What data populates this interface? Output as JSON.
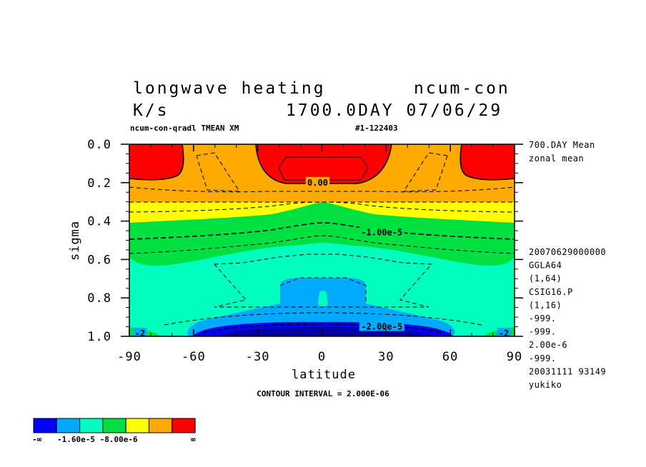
{
  "header": {
    "title": "longwave heating",
    "model": "ncum-con",
    "units": "K/s",
    "time": "1700.0DAY 07/06/29",
    "run": "ncum-con-qradl TMEAN XM",
    "id": "#1-122403"
  },
  "side_info": {
    "top": [
      "700.DAY Mean",
      "zonal mean"
    ],
    "bottom": [
      "20070629000000",
      "GGLA64",
      "(1,64)",
      "CSIG16.P",
      "(1,16)",
      "-999.",
      "-999.",
      "2.00e-6",
      "-999.",
      "20031111  93149",
      "yukiko"
    ]
  },
  "footer": {
    "contour_interval": "CONTOUR INTERVAL = 2.000E-06"
  },
  "colorbar": {
    "colors": [
      "#0000ff",
      "#00aaff",
      "#00ffbf",
      "#00e040",
      "#ffff00",
      "#ffaa00",
      "#ff0000"
    ],
    "labels": [
      "-∞",
      "-1.60e-5 -8.00e-6",
      "∞"
    ]
  },
  "chart_data": {
    "type": "heatmap",
    "subtype": "filled contour (latitude-sigma cross section)",
    "xlabel": "latitude",
    "ylabel": "sigma",
    "xlim": [
      -90,
      90
    ],
    "ylim": [
      1.0,
      0.0
    ],
    "xticks": [
      -90,
      -60,
      -30,
      0,
      30,
      60,
      90
    ],
    "xtick_labels": [
      "-90",
      "-60",
      "-30",
      "0",
      "30",
      "60",
      "90"
    ],
    "yticks": [
      0.0,
      0.2,
      0.4,
      0.6,
      0.8,
      1.0
    ],
    "ytick_labels": [
      "0.0",
      "0.2",
      "0.4",
      "0.6",
      "0.8",
      "1.0"
    ],
    "contour_labels": [
      {
        "text": "0.00",
        "lat": -2,
        "sigma": 0.2
      },
      {
        "text": "-1.00e-5",
        "lat": 28,
        "sigma": 0.46
      },
      {
        "text": "-2.00e-5",
        "lat": 28,
        "sigma": 0.95
      },
      {
        "text": "-2",
        "lat": -85,
        "sigma": 0.985
      },
      {
        "text": "-2",
        "lat": 85,
        "sigma": 0.985
      }
    ],
    "contour_interval": 2e-06
  }
}
